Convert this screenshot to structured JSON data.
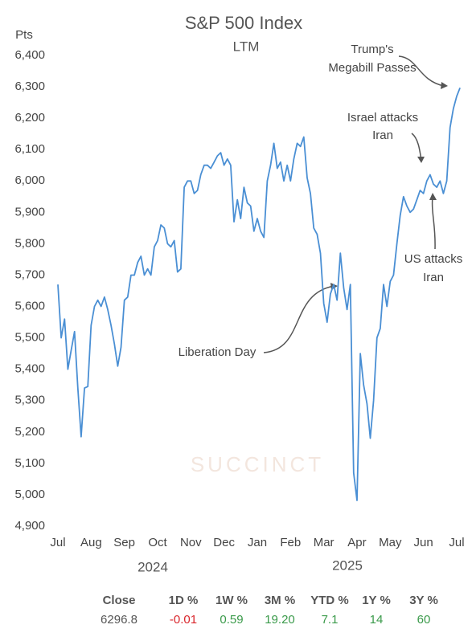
{
  "chart_data": {
    "type": "line",
    "title": "S&P 500 Index",
    "subtitle": "LTM",
    "y_label": "Pts",
    "watermark": "SUCCINCT",
    "categories": [
      "Jul",
      null,
      null,
      null,
      null,
      null,
      null,
      null,
      null,
      null,
      "Aug",
      null,
      null,
      null,
      null,
      null,
      null,
      null,
      null,
      null,
      "Sep",
      null,
      null,
      null,
      null,
      null,
      null,
      null,
      null,
      null,
      "Oct",
      null,
      null,
      null,
      null,
      null,
      null,
      null,
      null,
      null,
      "Nov",
      null,
      null,
      null,
      null,
      null,
      null,
      null,
      null,
      null,
      "Dec",
      null,
      null,
      null,
      null,
      null,
      null,
      null,
      null,
      null,
      "Jan",
      null,
      null,
      null,
      null,
      null,
      null,
      null,
      null,
      null,
      "Feb",
      null,
      null,
      null,
      null,
      null,
      null,
      null,
      null,
      null,
      "Mar",
      null,
      null,
      null,
      null,
      null,
      null,
      null,
      null,
      null,
      "Apr",
      null,
      null,
      null,
      null,
      null,
      null,
      null,
      null,
      null,
      "May",
      null,
      null,
      null,
      null,
      null,
      null,
      null,
      null,
      null,
      "Jun",
      null,
      null,
      null,
      null,
      null,
      null,
      null,
      null,
      null,
      "Jul",
      null
    ],
    "years": [
      "2024",
      "2025"
    ],
    "series": [
      {
        "name": "S&P 500",
        "color": "#4a8fd4",
        "values": [
          5670,
          5500,
          5560,
          5400,
          5460,
          5520,
          5340,
          5185,
          5340,
          5345,
          5540,
          5600,
          5620,
          5600,
          5630,
          5590,
          5540,
          5480,
          5410,
          5470,
          5620,
          5630,
          5700,
          5700,
          5740,
          5760,
          5700,
          5720,
          5700,
          5790,
          5810,
          5860,
          5850,
          5800,
          5790,
          5810,
          5710,
          5720,
          5980,
          6000,
          6000,
          5960,
          5970,
          6020,
          6050,
          6050,
          6040,
          6060,
          6080,
          6090,
          6050,
          6070,
          6050,
          5870,
          5940,
          5880,
          5980,
          5930,
          5920,
          5840,
          5880,
          5840,
          5820,
          6000,
          6050,
          6120,
          6040,
          6060,
          6000,
          6050,
          6000,
          6070,
          6120,
          6110,
          6140,
          6010,
          5960,
          5850,
          5830,
          5770,
          5610,
          5550,
          5640,
          5670,
          5620,
          5770,
          5660,
          5590,
          5670,
          5070,
          4982,
          5450,
          5350,
          5290,
          5180,
          5300,
          5500,
          5530,
          5670,
          5600,
          5680,
          5700,
          5800,
          5890,
          5950,
          5920,
          5900,
          5910,
          5940,
          5970,
          5960,
          6000,
          6020,
          5990,
          5980,
          6000,
          5960,
          6000,
          6170,
          6230,
          6270,
          6296.8
        ]
      }
    ],
    "ylim": [
      4900,
      6400
    ],
    "yticks": [
      {
        "value": 4900,
        "label": "4,900"
      },
      {
        "value": 5000,
        "label": "5,000"
      },
      {
        "value": 5100,
        "label": "5,100"
      },
      {
        "value": 5200,
        "label": "5,200"
      },
      {
        "value": 5300,
        "label": "5,300"
      },
      {
        "value": 5400,
        "label": "5,400"
      },
      {
        "value": 5500,
        "label": "5,500"
      },
      {
        "value": 5600,
        "label": "5,600"
      },
      {
        "value": 5700,
        "label": "5,700"
      },
      {
        "value": 5800,
        "label": "5,800"
      },
      {
        "value": 5900,
        "label": "5,900"
      },
      {
        "value": 6000,
        "label": "6,000"
      },
      {
        "value": 6100,
        "label": "6,100"
      },
      {
        "value": 6200,
        "label": "6,200"
      },
      {
        "value": 6300,
        "label": "6,300"
      },
      {
        "value": 6400,
        "label": "6,400"
      }
    ],
    "grid": false,
    "annotations": [
      {
        "lines": [
          "Trump's",
          "Megabill Passes"
        ]
      },
      {
        "lines": [
          "Israel attacks",
          "Iran"
        ]
      },
      {
        "lines": [
          "US attacks",
          "Iran"
        ]
      },
      {
        "lines": [
          "Liberation Day"
        ]
      }
    ],
    "stats": [
      {
        "header": "Close",
        "value": "6296.8",
        "color": "#555555"
      },
      {
        "header": "1D %",
        "value": "-0.01",
        "color": "#d9262c"
      },
      {
        "header": "1W %",
        "value": "0.59",
        "color": "#3a9a4a"
      },
      {
        "header": "3M %",
        "value": "19.20",
        "color": "#3a9a4a"
      },
      {
        "header": "YTD %",
        "value": "7.1",
        "color": "#3a9a4a"
      },
      {
        "header": "1Y %",
        "value": "14",
        "color": "#3a9a4a"
      },
      {
        "header": "3Y %",
        "value": "60",
        "color": "#3a9a4a"
      }
    ]
  }
}
